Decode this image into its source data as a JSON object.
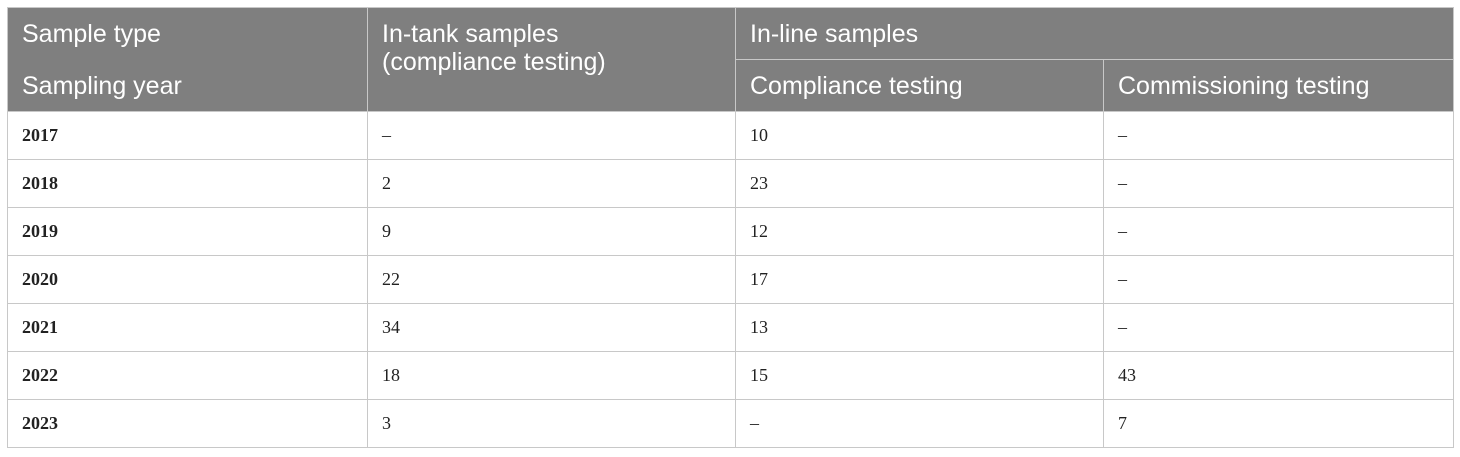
{
  "header": {
    "sample_type": "Sample type",
    "sampling_year": "Sampling year",
    "in_tank_line1": "In-tank samples",
    "in_tank_line2": "(compliance testing)",
    "in_line": "In-line samples",
    "compliance": "Compliance testing",
    "commissioning": "Commissioning testing"
  },
  "rows": [
    {
      "year": "2017",
      "in_tank": "–",
      "compliance": "10",
      "commissioning": "–"
    },
    {
      "year": "2018",
      "in_tank": "2",
      "compliance": "23",
      "commissioning": "–"
    },
    {
      "year": "2019",
      "in_tank": "9",
      "compliance": "12",
      "commissioning": "–"
    },
    {
      "year": "2020",
      "in_tank": "22",
      "compliance": "17",
      "commissioning": "–"
    },
    {
      "year": "2021",
      "in_tank": "34",
      "compliance": "13",
      "commissioning": "–"
    },
    {
      "year": "2022",
      "in_tank": "18",
      "compliance": "15",
      "commissioning": "43"
    },
    {
      "year": "2023",
      "in_tank": "3",
      "compliance": "–",
      "commissioning": "7"
    }
  ]
}
